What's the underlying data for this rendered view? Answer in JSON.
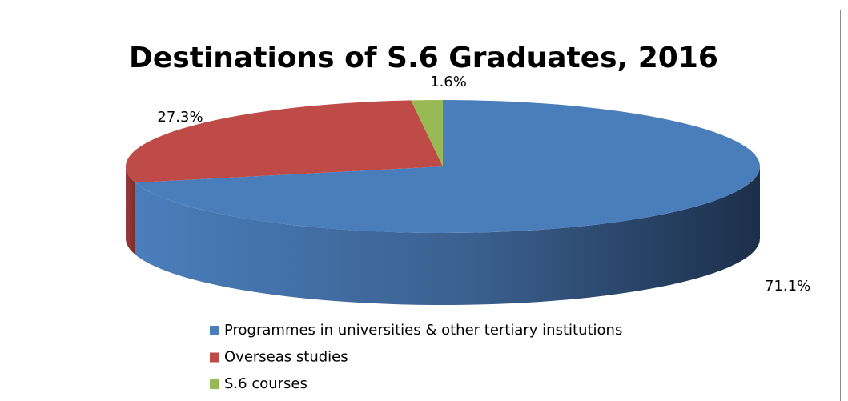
{
  "chart_data": {
    "type": "pie3d",
    "title": "Destinations of S.6 Graduates, 2016",
    "categories": [
      "Programmes in universities & other tertiary institutions",
      "Overseas studies",
      "S.6 courses"
    ],
    "values": [
      71.1,
      27.3,
      1.6
    ],
    "value_labels": [
      "71.1%",
      "27.3%",
      "1.6%"
    ],
    "colors": [
      "#4a7ebb",
      "#be4b48",
      "#98b954"
    ],
    "legend": "bottom"
  }
}
